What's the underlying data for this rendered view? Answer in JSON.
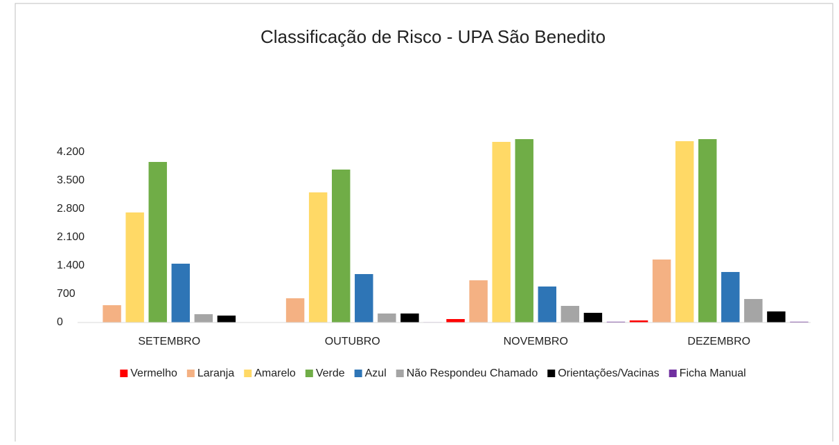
{
  "chart_data": {
    "type": "bar",
    "title": "Classificação de Risco - UPA São Benedito",
    "categories": [
      "SETEMBRO",
      "OUTUBRO",
      "NOVEMBRO",
      "DEZEMBRO"
    ],
    "series": [
      {
        "name": "Vermelho",
        "color": "#ff0000",
        "values": [
          5,
          5,
          85,
          51
        ]
      },
      {
        "name": "Laranja",
        "color": "#f4b183",
        "values": [
          427,
          598,
          1041,
          1554
        ]
      },
      {
        "name": "Amarelo",
        "color": "#ffd966",
        "values": [
          2715,
          3210,
          4456,
          4473
        ]
      },
      {
        "name": "Verde",
        "color": "#70ad47",
        "values": [
          3961,
          3773,
          4524,
          4524
        ]
      },
      {
        "name": "Azul",
        "color": "#2e75b6",
        "values": [
          1451,
          1195,
          888,
          1246
        ]
      },
      {
        "name": "Não Respondeu Chamado",
        "color": "#a5a5a5",
        "values": [
          205,
          222,
          410,
          580
        ]
      },
      {
        "name": "Orientações/Vacinas",
        "color": "#000000",
        "values": [
          171,
          222,
          239,
          273
        ]
      },
      {
        "name": "Ficha Manual",
        "color": "#7030a0",
        "values": [
          5,
          10,
          20,
          20
        ]
      }
    ],
    "ylim": [
      0,
      4900
    ],
    "yticks": [
      0,
      700,
      {
        "value": 1400,
        "label": "1.400"
      },
      {
        "value": 2100,
        "label": "2.100"
      },
      {
        "value": 2800,
        "label": "2.800"
      },
      {
        "value": 3500,
        "label": "3.500"
      },
      {
        "value": 4200,
        "label": "4.200"
      }
    ],
    "legend": "bottom"
  }
}
